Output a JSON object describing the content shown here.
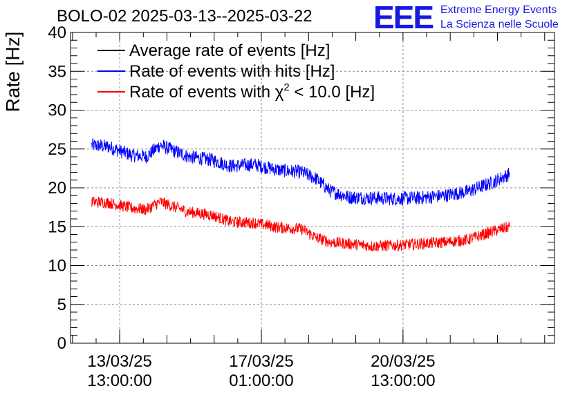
{
  "header": {
    "title": "BOLO-02 2025-03-13--2025-03-22",
    "logo_mark": "EEE",
    "logo_line1": "Extreme Energy Events",
    "logo_line2": "La Scienza nelle Scuole"
  },
  "colors": {
    "black": "#000000",
    "blue": "#0000ff",
    "red": "#ff0000",
    "logo": "#1818e0"
  },
  "chart_data": {
    "type": "line",
    "title": "BOLO-02 2025-03-13--2025-03-22",
    "ylabel": "Rate [Hz]",
    "xlabel": "",
    "ylim": [
      0,
      40
    ],
    "yticks": [
      0,
      5,
      10,
      15,
      20,
      25,
      30,
      35,
      40
    ],
    "xlim_days": [
      0,
      10.25
    ],
    "xticks": [
      {
        "pos_days": 1.0417,
        "line1": "13/03/25",
        "line2": "13:00:00"
      },
      {
        "pos_days": 4.0417,
        "line1": "17/03/25",
        "line2": "01:00:00"
      },
      {
        "pos_days": 7.0417,
        "line1": "20/03/25",
        "line2": "13:00:00"
      }
    ],
    "grid": true,
    "legend_position": "top-left",
    "series": [
      {
        "name": "Average rate of events [Hz]",
        "color": "#000000",
        "legend_pre": "Average rate of events [Hz]",
        "legend_sup": "",
        "legend_post": "",
        "x_days": [],
        "values": []
      },
      {
        "name": "Rate of events with hits [Hz]",
        "color": "#0000ff",
        "legend_pre": "Rate of events with hits [Hz]",
        "legend_sup": "",
        "legend_post": "",
        "noise": 0.9,
        "x_days": [
          0.45,
          0.8,
          1.3,
          1.6,
          1.9,
          2.5,
          3.0,
          3.4,
          3.9,
          4.4,
          4.9,
          5.2,
          5.5,
          5.9,
          6.4,
          6.9,
          7.4,
          7.9,
          8.4,
          8.9,
          9.3
        ],
        "values": [
          25.5,
          25.3,
          24.2,
          24.0,
          25.5,
          24.0,
          23.6,
          22.8,
          23.0,
          22.3,
          22.0,
          21.2,
          19.6,
          18.8,
          18.7,
          18.6,
          18.7,
          19.0,
          19.5,
          20.6,
          21.8
        ]
      },
      {
        "name": "Rate of events with chi2 < 10.0 [Hz]",
        "color": "#ff0000",
        "legend_pre": "Rate of events with χ",
        "legend_sup": "2",
        "legend_post": " < 10.0 [Hz]",
        "noise": 0.75,
        "x_days": [
          0.45,
          0.8,
          1.3,
          1.6,
          1.9,
          2.5,
          3.0,
          3.4,
          3.9,
          4.4,
          4.9,
          5.2,
          5.5,
          5.9,
          6.4,
          6.9,
          7.4,
          7.9,
          8.4,
          8.9,
          9.3
        ],
        "values": [
          18.2,
          18.1,
          17.4,
          17.2,
          18.2,
          16.9,
          16.5,
          15.6,
          15.5,
          14.9,
          14.7,
          13.6,
          13.0,
          12.8,
          12.5,
          12.6,
          12.8,
          13.0,
          13.3,
          14.3,
          15.0
        ]
      }
    ]
  }
}
